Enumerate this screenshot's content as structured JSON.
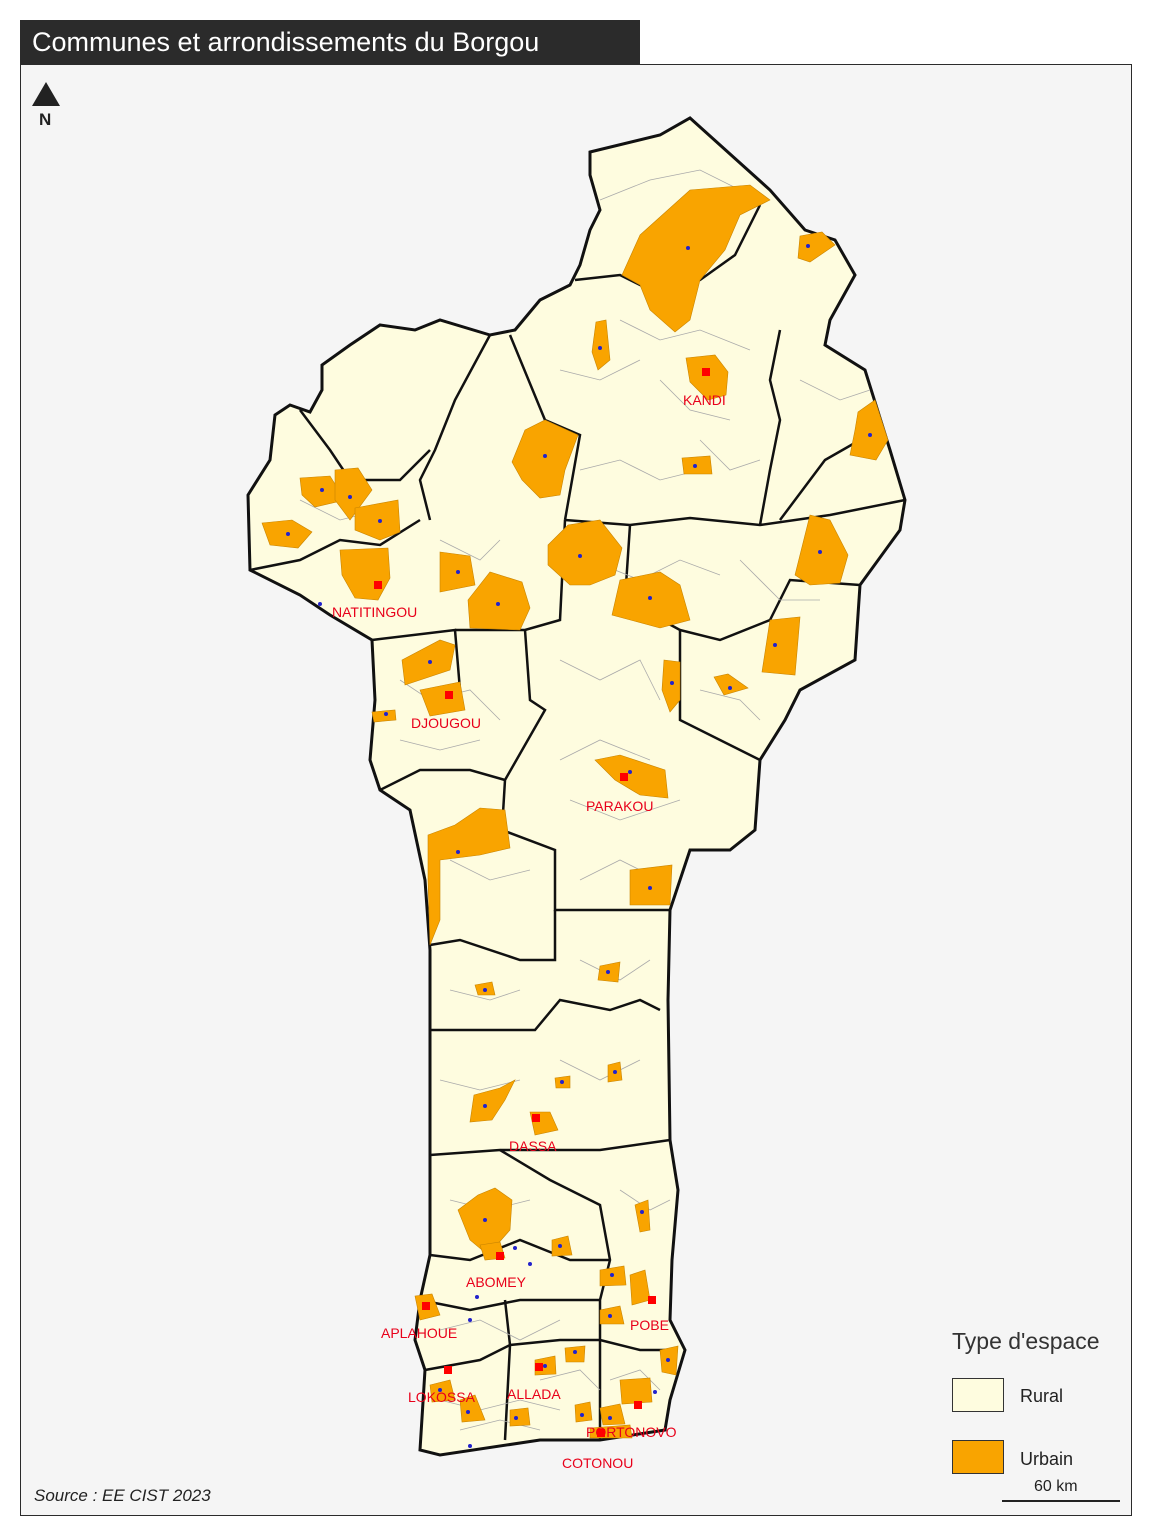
{
  "title": "Communes et arrondissements du Borgou",
  "north_label": "N",
  "colors": {
    "rural": "#fefcdf",
    "urbain": "#f9a400",
    "commune_border": "#111111",
    "arrondissement_border": "#aaaaaa",
    "city_marker": "#ff0000",
    "city_label": "#e8001a",
    "urban_dot": "#2222cc",
    "background": "#f5f5f5"
  },
  "cities": [
    {
      "name": "KANDI"
    },
    {
      "name": "NATITINGOU"
    },
    {
      "name": "DJOUGOU"
    },
    {
      "name": "PARAKOU"
    },
    {
      "name": "DASSA"
    },
    {
      "name": "ABOMEY"
    },
    {
      "name": "APLAHOUE"
    },
    {
      "name": "POBE"
    },
    {
      "name": "LOKOSSA"
    },
    {
      "name": "ALLADA"
    },
    {
      "name": "PORTONOVO"
    },
    {
      "name": "COTONOU"
    }
  ],
  "legend": {
    "title": "Type d'espace",
    "items": [
      {
        "label": "Rural",
        "color": "#fefcdf"
      },
      {
        "label": "Urbain",
        "color": "#f9a400"
      }
    ]
  },
  "scale": {
    "label": "60 km"
  },
  "source": "Source : EE CIST 2023"
}
